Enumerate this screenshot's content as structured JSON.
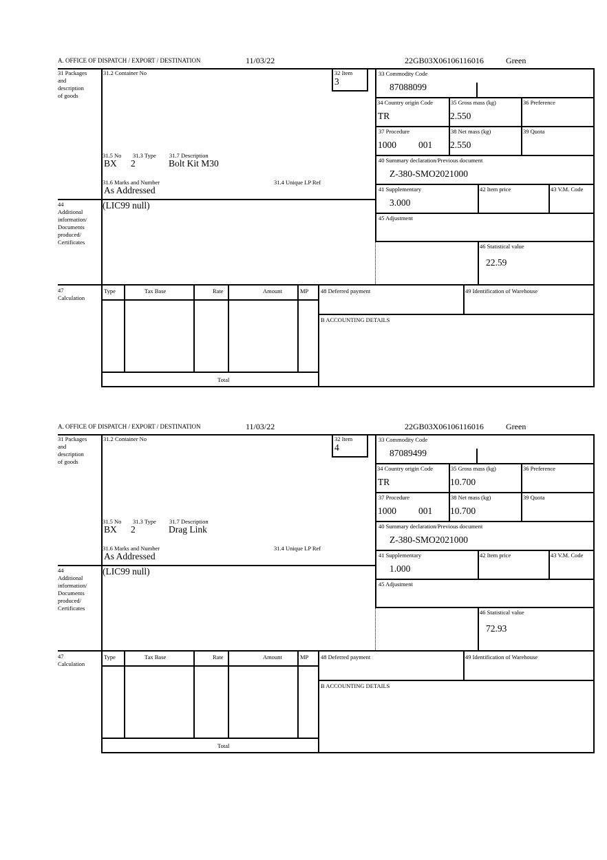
{
  "labels": {
    "office": "A.  OFFICE OF DISPATCH / EXPORT / DESTINATION",
    "packages": "31 Packages\nand\ndescription\nof goods",
    "container": "31.2 Container No",
    "item": "32 Item",
    "pkg_no": "31.5 No",
    "pkg_type": "31.3 Type",
    "description": "31.7 Description",
    "marks": "31.6 Marks and Number",
    "unique_ref": "31.4 Unique LP Ref",
    "commodity": "33 Commodity Code",
    "country": "34 Country origin Code",
    "gross": "35 Gross mass (kg)",
    "preference": "36 Preference",
    "procedure": "37 Procedure",
    "net": "38 Net mass (kg)",
    "quota": "39 Quota",
    "summary": "40 Summary declaration/Previous document",
    "supplementary": "41 Supplementary",
    "item_price": "42 Item price",
    "vm_code": "43 V.M. Code",
    "additional": "44\nAdditional\ninformation/\nDocuments\nproduced/\nCertificates",
    "adjustment": "45 Adjustment",
    "statistical": "46 Statistical value",
    "calculation": "47\nCalculation",
    "calc_type": "Type",
    "calc_tax_base": "Tax Base",
    "calc_rate": "Rate",
    "calc_amount": "Amount",
    "calc_mp": "MP",
    "calc_total": "Total",
    "deferred": "48 Deferred payment",
    "warehouse": "49 Identification of Warehouse",
    "accounting": "B ACCOUNTING DETAILS"
  },
  "forms": [
    {
      "date": "11/03/22",
      "reference": "22GB03X06106116016",
      "route": "Green",
      "item": "3",
      "pkg_no": "BX",
      "pkg_type": "2",
      "description": "Bolt Kit M30",
      "marks": "As Addressed",
      "commodity": "87088099",
      "country": "TR",
      "gross": "2.550",
      "procedure": "1000",
      "procedure_extra": "001",
      "net": "2.550",
      "summary": "Z-380-SMO2021000",
      "supplementary": "3.000",
      "additional": "(LIC99 null)",
      "statistical": "22.59"
    },
    {
      "date": "11/03/22",
      "reference": "22GB03X06106116016",
      "route": "Green",
      "item": "4",
      "pkg_no": "BX",
      "pkg_type": "2",
      "description": "Drag Link",
      "marks": "As Addressed",
      "commodity": "87089499",
      "country": "TR",
      "gross": "10.700",
      "procedure": "1000",
      "procedure_extra": "001",
      "net": "10.700",
      "summary": "Z-380-SMO2021000",
      "supplementary": "1.000",
      "additional": "(LIC99 null)",
      "statistical": "72.93"
    }
  ]
}
